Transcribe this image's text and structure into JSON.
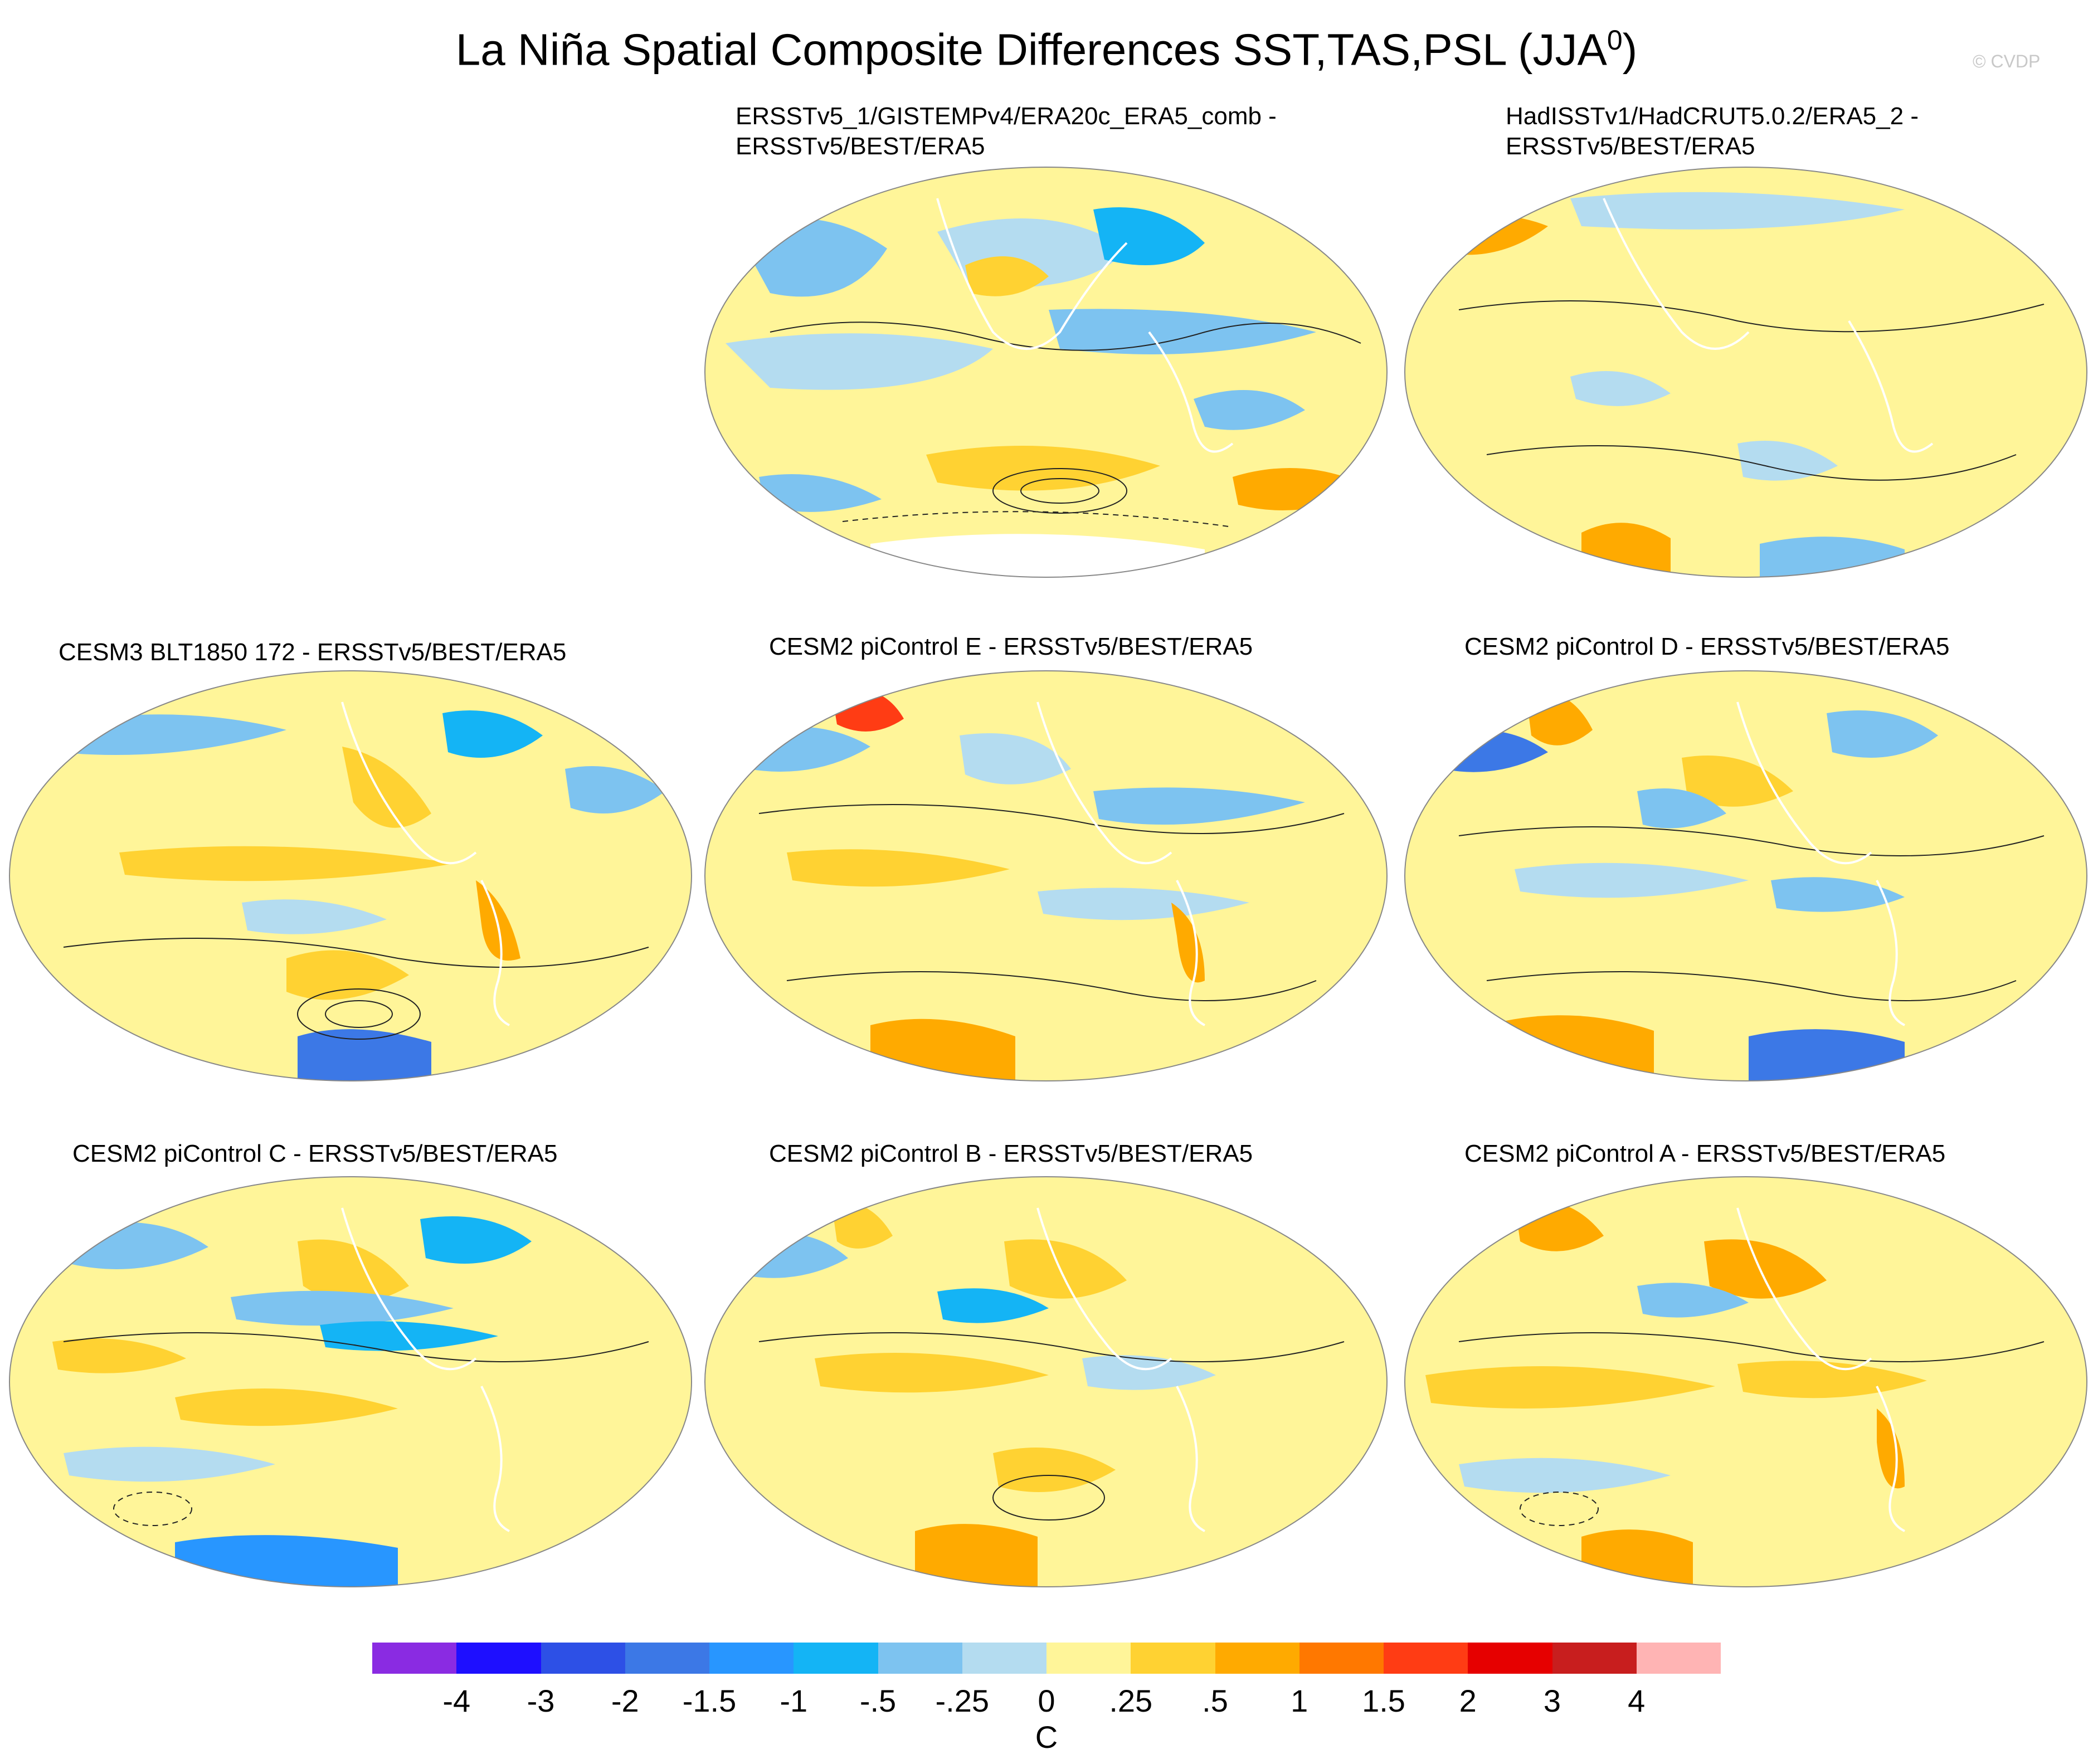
{
  "title": {
    "main": "La Niña Spatial Composite Differences SST,TAS,PSL (JJA",
    "sup": "0",
    "close": ")"
  },
  "copyright": "© CVDP",
  "panels": [
    {
      "title": "ERSSTv5_1/GISTEMPv4/ERA20c_ERA5_comb -\nERSSTv5/BEST/ERA5"
    },
    {
      "title": "HadISSTv1/HadCRUT5.0.2/ERA5_2 -\nERSSTv5/BEST/ERA5"
    },
    {
      "title": "CESM3 BLT1850 172 - ERSSTv5/BEST/ERA5"
    },
    {
      "title": "CESM2 piControl E - ERSSTv5/BEST/ERA5"
    },
    {
      "title": "CESM2 piControl D - ERSSTv5/BEST/ERA5"
    },
    {
      "title": "CESM2 piControl C - ERSSTv5/BEST/ERA5"
    },
    {
      "title": "CESM2 piControl B - ERSSTv5/BEST/ERA5"
    },
    {
      "title": "CESM2 piControl A - ERSSTv5/BEST/ERA5"
    }
  ],
  "colorbar": {
    "colors": [
      "#8a2be2",
      "#1e0fff",
      "#2d50e6",
      "#3c78e6",
      "#2896ff",
      "#14b4f5",
      "#7dc3f0",
      "#b4dcf0",
      "#fff599",
      "#ffd232",
      "#ffaa00",
      "#ff7800",
      "#ff3c14",
      "#e60000",
      "#c81e1e",
      "#ffb4b4"
    ],
    "labels": [
      "-4",
      "-3",
      "-2",
      "-1.5",
      "-1",
      "-.5",
      "-.25",
      "0",
      ".25",
      ".5",
      "1",
      "1.5",
      "2",
      "3",
      "4"
    ],
    "units": "C"
  }
}
